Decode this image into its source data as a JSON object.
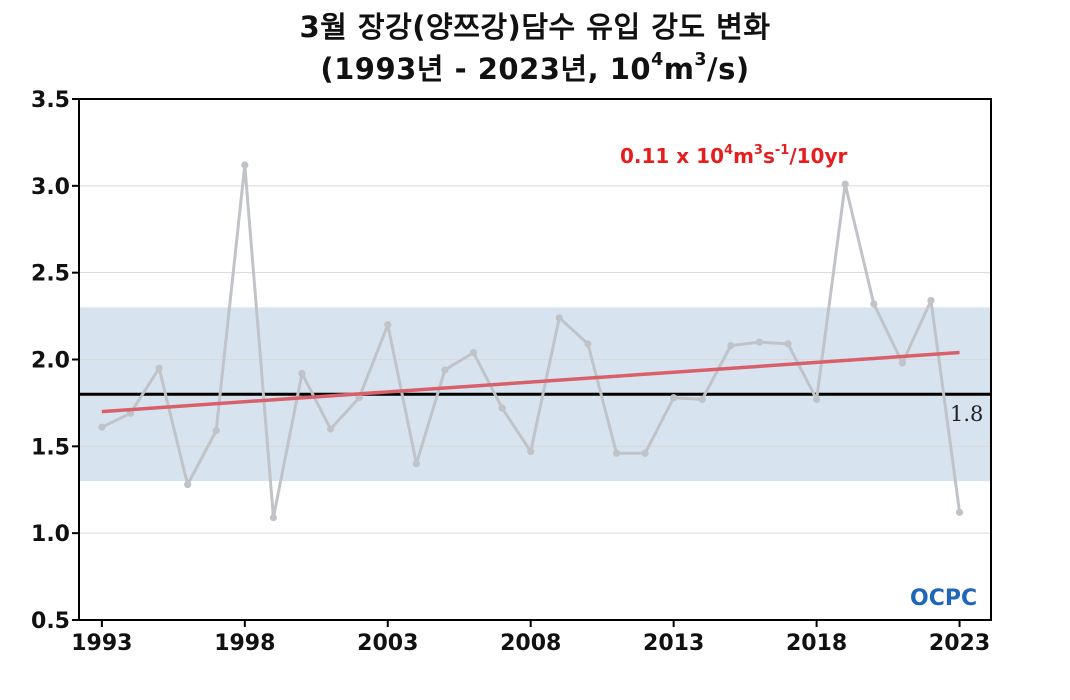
{
  "title": {
    "line1": "3월 장강(양쯔강)담수 유입 강도 변화",
    "line2_prefix": "(1993년 - 2023년, 10",
    "line2_exp1": "4",
    "line2_mid": "m",
    "line2_exp2": "3",
    "line2_suffix": "/s)"
  },
  "trend_label": {
    "prefix": "0.11 x 10",
    "exp1": "4",
    "m": "m",
    "exp2": "3",
    "s": "s",
    "exp3": "-1",
    "suffix": "/10yr"
  },
  "logo_text": "OCPC",
  "colors": {
    "series": "#c0c4c8",
    "trend": "#d9606a",
    "reference": "#000000",
    "band": "#d7e3ef",
    "trend_label": "#e51f1f",
    "logo": "#1e66b8"
  },
  "chart_data": {
    "type": "line",
    "xlim": [
      1992.2,
      2024.1
    ],
    "ylim": [
      0.5,
      3.5
    ],
    "y_ticks": [
      "0.5",
      "1.0",
      "1.5",
      "2.0",
      "2.5",
      "3.0",
      "3.5"
    ],
    "x_ticks": [
      "1993",
      "1998",
      "2003",
      "2008",
      "2013",
      "2018",
      "2023"
    ],
    "grid": "horizontal",
    "x": [
      1993,
      1994,
      1995,
      1996,
      1997,
      1998,
      1999,
      2000,
      2001,
      2002,
      2003,
      2004,
      2005,
      2006,
      2007,
      2008,
      2009,
      2010,
      2011,
      2012,
      2013,
      2014,
      2015,
      2016,
      2017,
      2018,
      2019,
      2020,
      2021,
      2022,
      2023
    ],
    "series": [
      {
        "values": [
          1.61,
          1.69,
          1.95,
          1.28,
          1.59,
          3.12,
          1.09,
          1.92,
          1.6,
          1.78,
          2.2,
          1.4,
          1.94,
          2.04,
          1.72,
          1.47,
          2.24,
          2.09,
          1.46,
          1.46,
          1.78,
          1.77,
          2.08,
          2.1,
          2.09,
          1.77,
          3.01,
          2.32,
          1.98,
          2.34,
          1.12
        ]
      }
    ],
    "trend": {
      "start": [
        1993,
        1.7
      ],
      "end": [
        2023,
        2.04
      ],
      "label": "0.11 x 10^4 m^3 s^-1 /10yr"
    },
    "reference_line": {
      "value": 1.8,
      "label": "1.8"
    },
    "band": [
      1.3,
      2.3
    ]
  }
}
